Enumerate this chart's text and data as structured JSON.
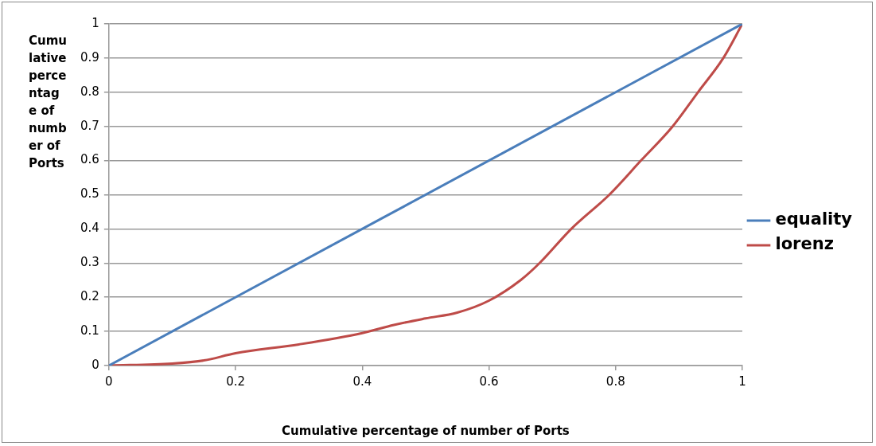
{
  "chart_data": {
    "type": "line",
    "xlabel": "Cumulative percentage of number of Ports",
    "ylabel": "Cumulative percentage of number of Ports",
    "xlim": [
      0,
      1
    ],
    "ylim": [
      0,
      1
    ],
    "xticks": [
      0,
      0.2,
      0.4,
      0.6,
      0.8,
      1
    ],
    "yticks": [
      0,
      0.1,
      0.2,
      0.3,
      0.4,
      0.5,
      0.6,
      0.7,
      0.8,
      0.9,
      1
    ],
    "grid": "y",
    "legend": "right",
    "marker": "none",
    "line_style": "solid",
    "series": [
      {
        "name": "equality",
        "color": "#4a7ebb",
        "x": [
          0,
          1
        ],
        "values": [
          0,
          1
        ]
      },
      {
        "name": "lorenz",
        "color": "#be4b48",
        "x": [
          0,
          0.1,
          0.15,
          0.2,
          0.3,
          0.4,
          0.45,
          0.5,
          0.55,
          0.6,
          0.65,
          0.68,
          0.73,
          0.79,
          0.84,
          0.89,
          0.93,
          0.97,
          1
        ],
        "values": [
          0,
          0.006,
          0.015,
          0.036,
          0.062,
          0.095,
          0.119,
          0.138,
          0.155,
          0.19,
          0.25,
          0.3,
          0.4,
          0.5,
          0.6,
          0.7,
          0.8,
          0.9,
          1
        ]
      }
    ]
  }
}
